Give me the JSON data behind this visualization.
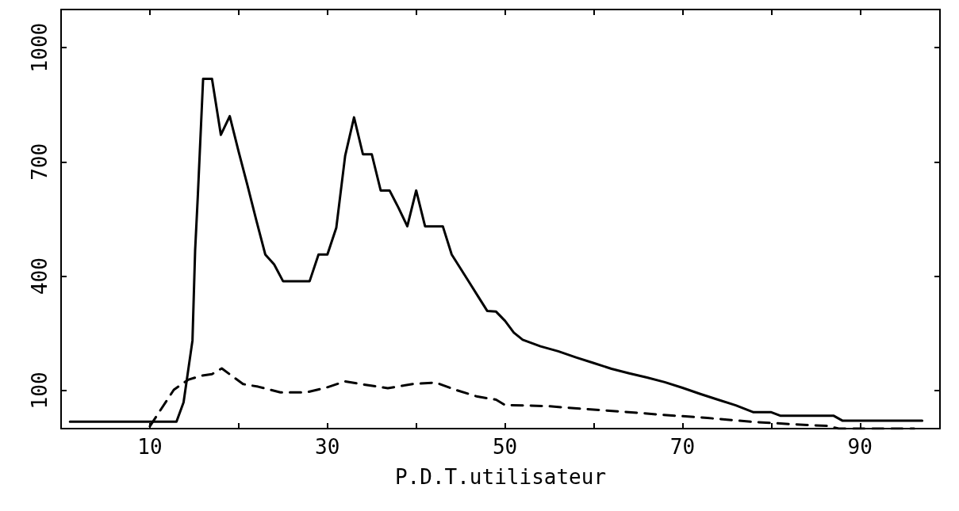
{
  "chart_data": {
    "type": "line",
    "xlabel": "P.D.T.utilisateur",
    "xlim": [
      0,
      99
    ],
    "ylim": [
      0,
      1100
    ],
    "xticks": [
      10,
      {
        "value": 20,
        "label": null
      },
      30,
      {
        "value": 40,
        "label": null
      },
      50,
      {
        "value": 60,
        "label": null
      },
      70,
      {
        "value": 80,
        "label": null
      },
      90
    ],
    "yticks": [
      100,
      400,
      700,
      1000
    ],
    "marker": "none",
    "series": [
      {
        "color": "#000000",
        "line_style": "solid",
        "x": [
          1,
          13,
          13.8,
          14.8,
          15.1,
          15.4,
          16,
          17,
          18,
          19,
          20,
          21,
          22,
          23,
          24,
          25,
          28,
          29,
          30,
          31,
          32,
          33,
          34,
          35,
          36,
          37,
          38,
          39,
          40,
          41,
          43,
          44,
          45,
          46,
          47,
          48,
          49,
          50,
          51,
          52,
          54,
          56,
          58,
          60,
          62,
          64,
          66,
          68,
          70,
          72,
          74,
          76,
          78,
          80,
          81,
          87,
          88,
          97
        ],
        "values": [
          18,
          18,
          69,
          231,
          468,
          609,
          918,
          918,
          771,
          820,
          727,
          638,
          546,
          457,
          431,
          387,
          387,
          457,
          457,
          527,
          716,
          817,
          720,
          720,
          625,
          625,
          580,
          531,
          625,
          531,
          531,
          457,
          420,
          383,
          346,
          309,
          307,
          283,
          252,
          233,
          216,
          203,
          187,
          172,
          157,
          145,
          134,
          122,
          107,
          91,
          76,
          61,
          43,
          43,
          34,
          34,
          21,
          21
        ]
      },
      {
        "color": "#000000",
        "line_style": "dashed",
        "x": [
          10,
          12.7,
          14.3,
          15.8,
          17,
          18.1,
          19.2,
          20.5,
          22.2,
          24.7,
          27.6,
          29.8,
          32,
          34.3,
          36.8,
          39.6,
          42.2,
          44.4,
          46.9,
          49,
          50,
          54.8,
          58.1,
          63,
          67.9,
          72.8,
          77.7,
          82.7,
          86.3,
          87.6,
          96.1
        ],
        "values": [
          6,
          102,
          128,
          139,
          143,
          158,
          139,
          117,
          110,
          95,
          95,
          107,
          124,
          115,
          106,
          117,
          121,
          102,
          84,
          76,
          62,
          59,
          53,
          45,
          36,
          28,
          18,
          11,
          7,
          0,
          0
        ]
      }
    ]
  }
}
